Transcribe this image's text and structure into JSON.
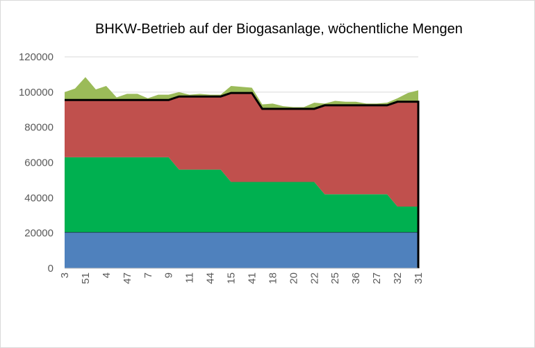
{
  "chart_data": {
    "type": "area",
    "title": "BHKW-Betrieb auf der Biogasanlage, wöchentliche Mengen",
    "xlabel": "",
    "ylabel": "",
    "ylim": [
      0,
      120000
    ],
    "y_ticks": [
      0,
      20000,
      40000,
      60000,
      80000,
      100000,
      120000
    ],
    "grid": true,
    "legend": "none",
    "categories": [
      "3",
      "",
      "51",
      "",
      "4",
      "",
      "47",
      "",
      "7",
      "",
      "9",
      "",
      "11",
      "",
      "44",
      "",
      "15",
      "",
      "41",
      "",
      "18",
      "",
      "20",
      "",
      "22",
      "",
      "25",
      "",
      "36",
      "",
      "27",
      "",
      "32",
      "",
      "31"
    ],
    "x_tick_labels": [
      "3",
      "51",
      "4",
      "47",
      "7",
      "9",
      "11",
      "44",
      "15",
      "41",
      "18",
      "20",
      "22",
      "25",
      "36",
      "27",
      "32",
      "31"
    ],
    "stacked": true,
    "series": [
      {
        "color": "#4f81bd",
        "values": [
          20500,
          20500,
          20500,
          20500,
          20500,
          20500,
          20500,
          20500,
          20500,
          20500,
          20500,
          20500,
          20500,
          20500,
          20500,
          20500,
          20500,
          20500,
          20500,
          20500,
          20500,
          20500,
          20500,
          20500,
          20500,
          20500,
          20500,
          20500,
          20500,
          20500,
          20500,
          20500,
          20500,
          20500,
          20500
        ]
      },
      {
        "color": "#00b050",
        "values": [
          42500,
          42500,
          42500,
          42500,
          42500,
          42500,
          42500,
          42500,
          42500,
          42500,
          42500,
          35500,
          35500,
          35500,
          35500,
          35500,
          28500,
          28500,
          28500,
          28500,
          28500,
          28500,
          28500,
          28500,
          28500,
          21500,
          21500,
          21500,
          21500,
          21500,
          21500,
          21500,
          14500,
          14500,
          14500
        ]
      },
      {
        "color": "#c0504d",
        "values": [
          32500,
          32500,
          32500,
          32500,
          32500,
          32500,
          32500,
          32500,
          32500,
          32500,
          32500,
          41500,
          41500,
          41500,
          41500,
          41500,
          50500,
          50500,
          50500,
          41500,
          41500,
          41500,
          41500,
          41500,
          41500,
          50500,
          50500,
          50500,
          50500,
          50500,
          50500,
          50500,
          59000,
          59000,
          59000
        ]
      },
      {
        "color": "#9bbb59",
        "values": [
          4500,
          6500,
          13000,
          6000,
          8000,
          1500,
          3500,
          3500,
          1000,
          3000,
          3000,
          2500,
          1000,
          1500,
          1000,
          1000,
          4000,
          3500,
          3000,
          2500,
          3000,
          1500,
          1000,
          1000,
          3500,
          1000,
          2500,
          2000,
          2000,
          1000,
          1000,
          1500,
          2500,
          5500,
          7000
        ]
      }
    ],
    "black_line": {
      "color": "#000000",
      "values": [
        95500,
        95500,
        95500,
        95500,
        95500,
        95500,
        95500,
        95500,
        95500,
        95500,
        95500,
        97500,
        97500,
        97500,
        97500,
        97500,
        99500,
        99500,
        99500,
        90500,
        90500,
        90500,
        90500,
        90500,
        90500,
        92500,
        92500,
        92500,
        92500,
        92500,
        92500,
        92500,
        94500,
        94500,
        94500
      ]
    }
  }
}
